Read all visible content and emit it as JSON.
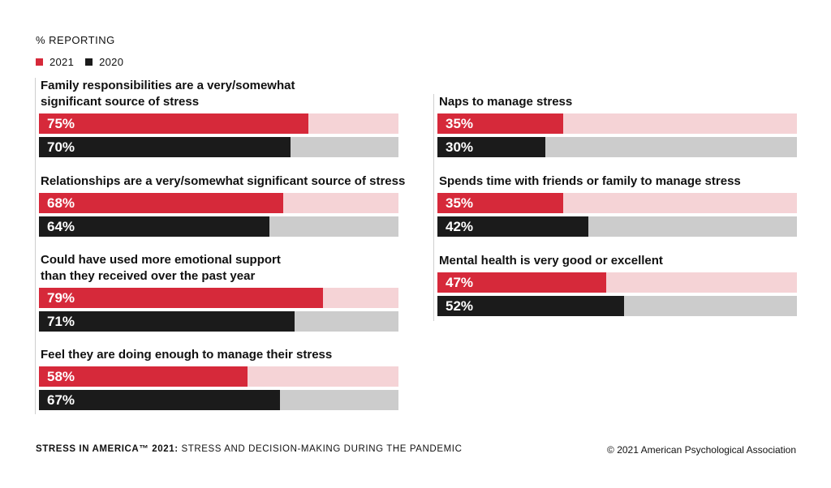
{
  "unit_label": "% REPORTING",
  "legend": [
    {
      "label": "2021",
      "color": "#d6293a"
    },
    {
      "label": "2020",
      "color": "#1b1b1b"
    }
  ],
  "track_colors": {
    "2021": "#f5d3d6",
    "2020": "#cccccc"
  },
  "chart_data": {
    "type": "bar",
    "orientation": "horizontal",
    "unit": "% reporting",
    "series_names": [
      "2021",
      "2020"
    ],
    "xlim": [
      0,
      100
    ],
    "groups": [
      {
        "title_lines": [
          "Family responsibilities are a very/somewhat",
          "significant source of stress"
        ],
        "values": [
          75,
          70
        ],
        "labels": [
          "75%",
          "70%"
        ]
      },
      {
        "title_lines": [
          "Relationships are a very/somewhat significant source of stress"
        ],
        "values": [
          68,
          64
        ],
        "labels": [
          "68%",
          "64%"
        ]
      },
      {
        "title_lines": [
          "Could have used more emotional support",
          "than they received over the past year"
        ],
        "values": [
          79,
          71
        ],
        "labels": [
          "79%",
          "71%"
        ]
      },
      {
        "title_lines": [
          "Feel they are doing enough to manage their stress"
        ],
        "values": [
          58,
          67
        ],
        "labels": [
          "58%",
          "67%"
        ]
      },
      {
        "title_lines": [
          "Naps to manage stress"
        ],
        "values": [
          35,
          30
        ],
        "labels": [
          "35%",
          "30%"
        ]
      },
      {
        "title_lines": [
          "Spends time with friends or family to manage stress"
        ],
        "values": [
          35,
          42
        ],
        "labels": [
          "35%",
          "42%"
        ]
      },
      {
        "title_lines": [
          "Mental health is very good or excellent"
        ],
        "values": [
          47,
          52
        ],
        "labels": [
          "47%",
          "52%"
        ]
      }
    ]
  },
  "footer": {
    "source_bold": "STRESS IN AMERICA™ 2021:",
    "source_rest": " STRESS AND DECISION-MAKING DURING THE PANDEMIC",
    "copyright": "© 2021 American Psychological Association"
  }
}
